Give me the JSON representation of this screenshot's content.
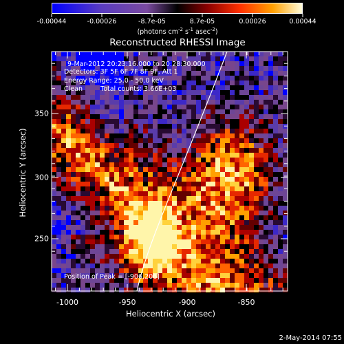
{
  "colorbar": {
    "ticks": [
      "-0.00044",
      "-0.00026",
      "-8.7e-05",
      "8.7e-05",
      "0.00026",
      "0.00044"
    ],
    "unit": {
      "pre": "(photons cm",
      "e1": "-2",
      "mid": " s",
      "e2": "-1",
      "mid2": " asec",
      "e3": "-2",
      "post": ")"
    }
  },
  "title": "Reconstructed RHESSI Image",
  "info": {
    "line1": "9-Mar-2012 20:23:16.000 to 20:28:30.000",
    "line2": "Detectors: 3F 5F 6F 7F 8F 9F, Att 1",
    "line3": "Energy Range: 25.0 - 50.0 keV",
    "line4_a": "Clean",
    "line4_b": "Total counts: 3.66E+03",
    "peak": "Position of Peak = [-906,206]"
  },
  "axes": {
    "xlabel": "Heliocentric X (arcsec)",
    "ylabel": "Heliocentric Y (arcsec)",
    "xticks": [
      "-1000",
      "-950",
      "-900",
      "-850"
    ],
    "yticks": [
      "250",
      "300",
      "350"
    ]
  },
  "footer": "2-May-2014 07:55"
}
